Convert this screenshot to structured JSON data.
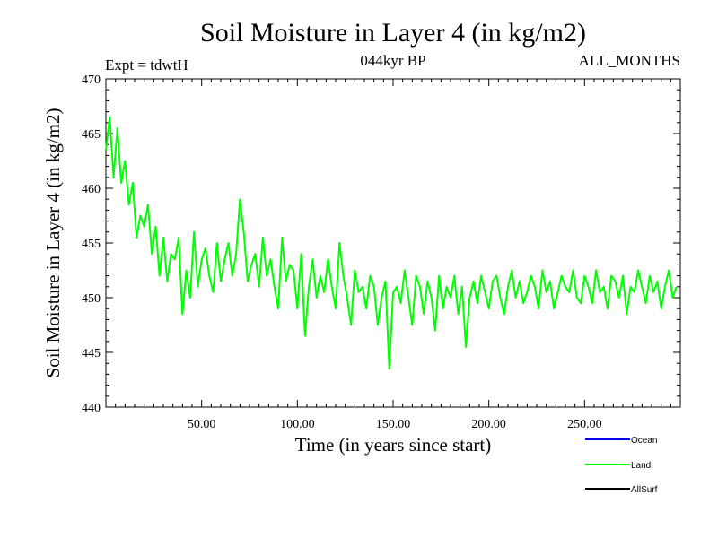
{
  "chart_data": {
    "type": "line",
    "title": "Soil Moisture in Layer 4 (in kg/m2)",
    "subtitle_left": "Expt = tdwtH",
    "subtitle_center": "044kyr BP",
    "subtitle_right": "ALL_MONTHS",
    "xlabel": "Time (in years since start)",
    "ylabel": "Soil Moisture in Layer 4 (in kg/m2)",
    "xlim": [
      0,
      300
    ],
    "ylim": [
      440,
      470
    ],
    "x_ticks": [
      50,
      100,
      150,
      200,
      250
    ],
    "x_tick_labels": [
      "50.00",
      "100.00",
      "150.00",
      "200.00",
      "250.00"
    ],
    "y_ticks": [
      440,
      445,
      450,
      455,
      460,
      465,
      470
    ],
    "y_tick_labels": [
      "440",
      "445",
      "450",
      "455",
      "460",
      "465",
      "470"
    ],
    "series": [
      {
        "name": "Land",
        "color": "#00ff00",
        "sample_step_years": 2,
        "x_start": 0,
        "values": [
          463.5,
          466.5,
          461.0,
          465.5,
          460.5,
          462.5,
          458.5,
          460.5,
          455.5,
          457.5,
          456.5,
          458.5,
          454.0,
          456.5,
          452.0,
          455.5,
          451.5,
          454.0,
          453.5,
          455.5,
          448.5,
          452.5,
          450.0,
          456.0,
          451.0,
          453.5,
          454.5,
          452.0,
          450.5,
          455.0,
          451.5,
          453.5,
          455.0,
          452.0,
          454.0,
          459.0,
          456.0,
          451.5,
          453.0,
          454.0,
          451.0,
          455.5,
          452.0,
          453.5,
          451.0,
          449.0,
          455.5,
          451.5,
          453.0,
          452.5,
          449.0,
          454.0,
          446.5,
          451.0,
          453.5,
          450.0,
          452.0,
          450.5,
          453.5,
          451.0,
          449.0,
          455.0,
          452.0,
          450.0,
          447.5,
          452.5,
          450.5,
          451.0,
          449.0,
          452.0,
          451.0,
          447.5,
          450.0,
          451.5,
          443.5,
          450.5,
          451.0,
          449.5,
          452.5,
          450.0,
          447.5,
          452.0,
          451.0,
          448.5,
          451.5,
          450.0,
          447.0,
          452.0,
          449.0,
          451.0,
          450.0,
          452.0,
          448.5,
          451.0,
          445.5,
          450.0,
          451.5,
          449.5,
          452.0,
          450.5,
          449.0,
          451.5,
          452.0,
          450.0,
          448.5,
          451.0,
          452.5,
          450.0,
          451.5,
          449.5,
          450.5,
          452.0,
          451.0,
          449.0,
          452.5,
          450.5,
          451.5,
          449.0,
          450.5,
          452.0,
          451.0,
          450.5,
          452.5,
          450.0,
          449.5,
          452.0,
          451.0,
          449.5,
          452.5,
          450.5,
          451.0,
          449.0,
          452.0,
          451.5,
          450.0,
          452.0,
          448.5,
          451.0,
          450.5,
          452.5,
          451.0,
          449.5,
          452.0,
          450.5,
          451.5,
          449.0,
          451.0,
          452.5,
          450.0,
          451.0
        ]
      },
      {
        "name": "Ocean",
        "color": "#0000ff",
        "values": []
      },
      {
        "name": "AllSurf",
        "color": "#000000",
        "values": []
      }
    ]
  },
  "legend": [
    {
      "label": "Ocean",
      "color": "#0000ff"
    },
    {
      "label": "Land",
      "color": "#00ff00"
    },
    {
      "label": "AllSurf",
      "color": "#000000"
    }
  ]
}
